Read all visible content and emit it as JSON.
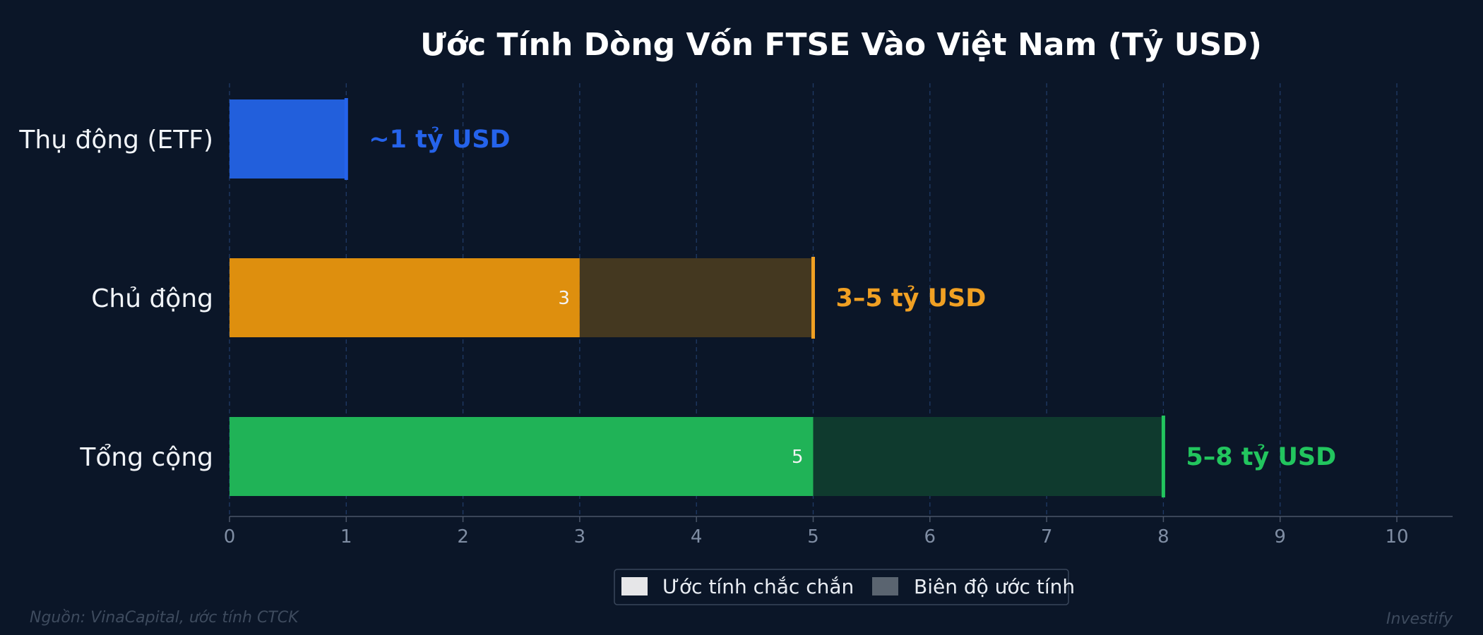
{
  "chart_data": {
    "type": "bar",
    "orientation": "horizontal",
    "title": "Ước Tính Dòng Vốn FTSE Vào Việt Nam (Tỷ USD)",
    "xlim": [
      0,
      10.5
    ],
    "x_ticks": [
      "0",
      "1",
      "2",
      "3",
      "4",
      "5",
      "6",
      "7",
      "8",
      "9",
      "10"
    ],
    "grid": "vertical dashed",
    "categories": [
      "Thụ động (ETF)",
      "Chủ động",
      "Tổng cộng"
    ],
    "series": [
      {
        "name": "Ước tính chắc chắn",
        "values": [
          1,
          3,
          5
        ]
      },
      {
        "name": "Biên độ ước tính",
        "values": [
          0,
          2,
          3
        ]
      }
    ],
    "in_bar_labels": [
      "",
      "3",
      "5"
    ],
    "range_labels": [
      "~1 tỷ USD",
      "3–5 tỷ USD",
      "5–8 tỷ USD"
    ],
    "colors": {
      "solid": [
        "#225fdc",
        "#de8f0e",
        "#20b357"
      ],
      "range": [
        "#225fdc",
        "#443820",
        "#0f3a2e"
      ],
      "label": [
        "#2563eb",
        "#f0a023",
        "#22c55e"
      ]
    },
    "legend": {
      "placement": "bottom-center",
      "items": [
        {
          "label": "Ước tính chắc chắn",
          "color": "#e6e6e8"
        },
        {
          "label": "Biên độ ước tính",
          "color": "#5a6470"
        }
      ]
    }
  },
  "footer": {
    "source": "Nguồn: VinaCapital, ước tính CTCK",
    "brand": "Investify"
  }
}
